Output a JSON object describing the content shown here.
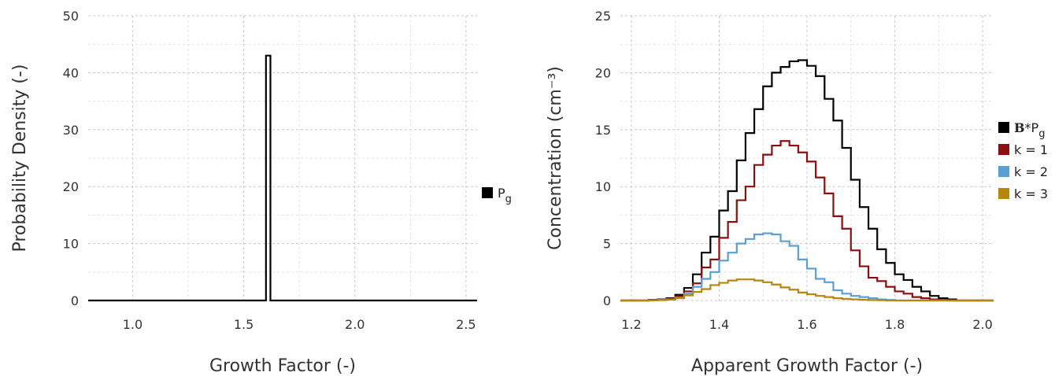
{
  "chart_data": [
    {
      "type": "line",
      "step": true,
      "xlabel": "Growth Factor (-)",
      "ylabel": "Probability Density (-)",
      "xlim": [
        0.8,
        2.55
      ],
      "ylim": [
        0,
        50
      ],
      "xticks": [
        1.0,
        1.5,
        2.0,
        2.5
      ],
      "xtick_labels": [
        "1.0",
        "1.5",
        "2.0",
        "2.5"
      ],
      "yticks": [
        0,
        10,
        20,
        30,
        40,
        50
      ],
      "ytick_labels": [
        "0",
        "10",
        "20",
        "30",
        "40",
        "50"
      ],
      "grid": true,
      "legend_position": "right",
      "series": [
        {
          "name": "P",
          "name_sub": "g",
          "color": "#000000",
          "x": [
            0.8,
            1.6,
            1.6,
            1.62,
            1.62,
            2.55
          ],
          "y": [
            0,
            0,
            43,
            43,
            0,
            0
          ]
        }
      ]
    },
    {
      "type": "line",
      "step": true,
      "xlabel": "Apparent Growth Factor (-)",
      "ylabel": "Concentration (cm⁻³)",
      "xlim": [
        1.175,
        2.025
      ],
      "ylim": [
        0,
        25
      ],
      "xticks": [
        1.2,
        1.4,
        1.6,
        1.8,
        2.0
      ],
      "xtick_labels": [
        "1.2",
        "1.4",
        "1.6",
        "1.8",
        "2.0"
      ],
      "yticks": [
        0,
        5,
        10,
        15,
        20,
        25
      ],
      "ytick_labels": [
        "0",
        "5",
        "10",
        "15",
        "20",
        "25"
      ],
      "grid": true,
      "legend_position": "right",
      "bin_width": 0.02,
      "bin_start": 1.18,
      "series": [
        {
          "name_bold": "B",
          "name": "*P",
          "name_sub": "g",
          "color": "#000000",
          "values": [
            0,
            0,
            0,
            0.05,
            0.1,
            0.2,
            0.5,
            1.1,
            2.3,
            4.2,
            5.6,
            7.9,
            9.6,
            12.3,
            14.7,
            16.8,
            18.8,
            20.0,
            20.5,
            21.0,
            21.1,
            20.6,
            19.7,
            17.7,
            15.8,
            13.4,
            10.6,
            8.2,
            6.3,
            4.5,
            3.3,
            2.3,
            1.8,
            1.2,
            0.8,
            0.4,
            0.2,
            0.1,
            0,
            0,
            0,
            0,
            0
          ]
        },
        {
          "name": "k = 1",
          "color": "#8b0f10",
          "values": [
            0,
            0,
            0,
            0.04,
            0.08,
            0.15,
            0.35,
            0.8,
            1.5,
            2.9,
            3.6,
            5.5,
            6.9,
            8.8,
            10.0,
            11.9,
            12.8,
            13.6,
            14.0,
            13.6,
            13.0,
            12.2,
            10.8,
            9.4,
            7.4,
            6.3,
            4.4,
            3.0,
            2.0,
            1.7,
            1.2,
            0.8,
            0.6,
            0.3,
            0.2,
            0.1,
            0.05,
            0,
            0,
            0,
            0,
            0,
            0
          ]
        },
        {
          "name": "k = 2",
          "color": "#5a9fd4",
          "values": [
            0,
            0,
            0,
            0.02,
            0.05,
            0.1,
            0.25,
            0.6,
            1.2,
            1.9,
            2.5,
            3.5,
            4.2,
            5.0,
            5.4,
            5.8,
            5.9,
            5.8,
            5.2,
            4.8,
            3.6,
            2.8,
            1.9,
            1.6,
            0.9,
            0.6,
            0.4,
            0.3,
            0.2,
            0.1,
            0.05,
            0,
            0,
            0,
            0,
            0,
            0,
            0,
            0,
            0,
            0,
            0,
            0
          ]
        },
        {
          "name": "k = 3",
          "color": "#b8860b",
          "values": [
            0,
            0,
            0,
            0.01,
            0.03,
            0.08,
            0.2,
            0.45,
            0.75,
            1.0,
            1.35,
            1.55,
            1.75,
            1.85,
            1.85,
            1.75,
            1.6,
            1.4,
            1.15,
            0.95,
            0.7,
            0.55,
            0.4,
            0.3,
            0.2,
            0.14,
            0.1,
            0.06,
            0.03,
            0.02,
            0,
            0,
            0,
            0,
            0,
            0,
            0,
            0,
            0,
            0,
            0,
            0,
            0
          ]
        }
      ]
    }
  ]
}
